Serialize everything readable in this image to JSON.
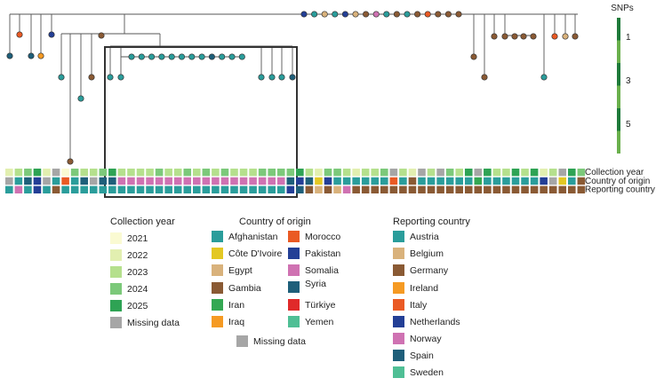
{
  "snp_scale": {
    "title": "SNPs",
    "ticks": [
      "1",
      "3",
      "5"
    ]
  },
  "track_labels": [
    "Collection year",
    "Country of origin",
    "Reporting country"
  ],
  "legend": {
    "collection_year": {
      "title": "Collection year",
      "items": [
        {
          "label": "2021",
          "color": "#fafad2"
        },
        {
          "label": "2022",
          "color": "#e2efb0"
        },
        {
          "label": "2023",
          "color": "#b5e08d"
        },
        {
          "label": "2024",
          "color": "#7cc97a"
        },
        {
          "label": "2025",
          "color": "#2ea354"
        },
        {
          "label": "Missing data",
          "color": "#a6a6a6"
        }
      ]
    },
    "country_of_origin": {
      "title": "Country of origin",
      "items": [
        {
          "label": "Afghanistan",
          "color": "#2a9d9b"
        },
        {
          "label": "Côte D'Ivoire",
          "color": "#e3c823"
        },
        {
          "label": "Egypt",
          "color": "#d9b27c"
        },
        {
          "label": "Gambia",
          "color": "#8a5a34"
        },
        {
          "label": "Iran",
          "color": "#34a853"
        },
        {
          "label": "Iraq",
          "color": "#f59a23"
        },
        {
          "label": "Morocco",
          "color": "#ea5a24"
        },
        {
          "label": "Pakistan",
          "color": "#233f96"
        },
        {
          "label": "Somalia",
          "color": "#cf72b2"
        },
        {
          "label": "Syria",
          "color": "#1e5f7a"
        },
        {
          "label": "Türkiye",
          "color": "#e02a2a"
        },
        {
          "label": "Yemen",
          "color": "#4fbf95"
        }
      ],
      "missing_label": "Missing data",
      "missing_color": "#a6a6a6"
    },
    "reporting_country": {
      "title": "Reporting country",
      "items": [
        {
          "label": "Austria",
          "color": "#2a9d9b"
        },
        {
          "label": "Belgium",
          "color": "#d9b27c"
        },
        {
          "label": "Germany",
          "color": "#8a5a34"
        },
        {
          "label": "Ireland",
          "color": "#f59a23"
        },
        {
          "label": "Italy",
          "color": "#ea5a24"
        },
        {
          "label": "Netherlands",
          "color": "#233f96"
        },
        {
          "label": "Norway",
          "color": "#cf72b2"
        },
        {
          "label": "Spain",
          "color": "#1e5f7a"
        },
        {
          "label": "Sweden",
          "color": "#4fbf95"
        }
      ]
    }
  }
}
